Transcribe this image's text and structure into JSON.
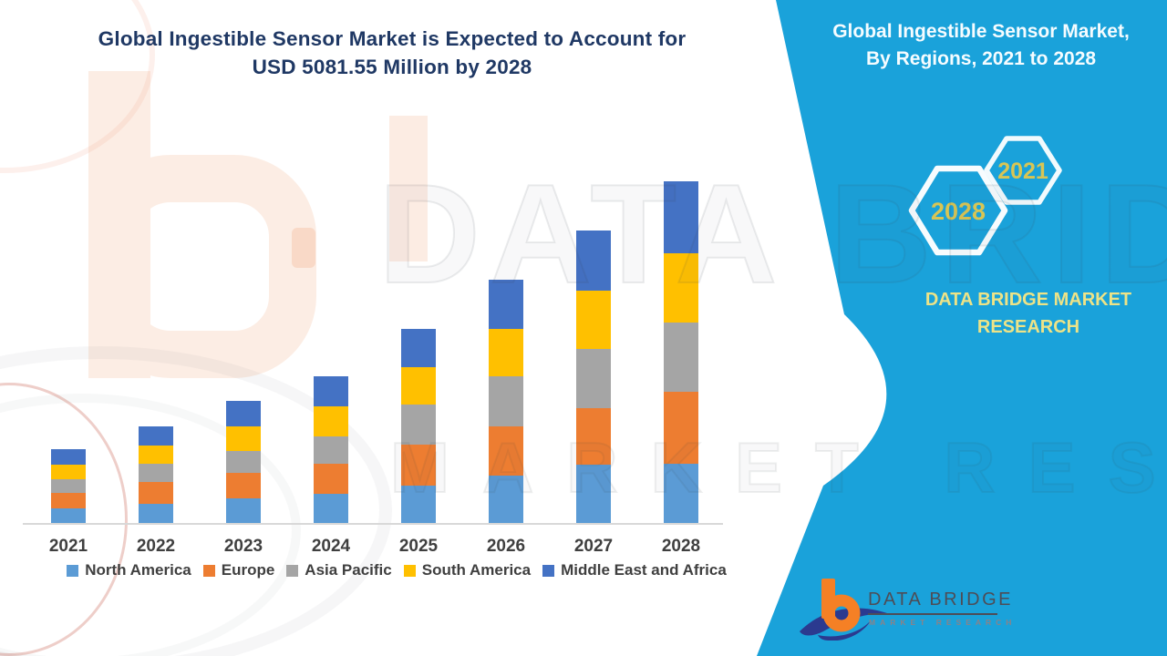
{
  "chart": {
    "title_line1": "Global Ingestible Sensor Market is Expected to Account for",
    "title_line2": "USD 5081.55 Million by 2028",
    "title_color": "#1F3864"
  },
  "chart_data": {
    "type": "bar",
    "stacked": true,
    "unit": "USD Million",
    "title": "Global Ingestible Sensor Market is Expected to Account for USD 5081.55 Million by 2028",
    "categories": [
      "2021",
      "2022",
      "2023",
      "2024",
      "2025",
      "2026",
      "2027",
      "2028"
    ],
    "series": [
      {
        "name": "North America",
        "color": "#5B9BD5",
        "values": [
          226,
          293,
          374,
          442,
          564,
          720,
          879,
          895
        ]
      },
      {
        "name": "Europe",
        "color": "#ED7D31",
        "values": [
          230,
          324,
          378,
          450,
          608,
          722,
          834,
          1065
        ]
      },
      {
        "name": "Asia Pacific",
        "color": "#A5A5A5",
        "values": [
          207,
          270,
          324,
          401,
          599,
          743,
          887,
          1030
        ]
      },
      {
        "name": "South America",
        "color": "#FFC000",
        "values": [
          212,
          270,
          365,
          454,
          558,
          707,
          861,
          1025
        ]
      },
      {
        "name": "Middle East and Africa",
        "color": "#4472C4",
        "values": [
          230,
          284,
          382,
          446,
          564,
          734,
          888,
          1066.55
        ]
      }
    ],
    "totals": [
      1105,
      1441,
      1823,
      2193,
      2893,
      3626,
      4349,
      5081.55
    ],
    "year_2028_total": "5081.55",
    "yaxis": "hidden",
    "grid": "off",
    "legend_position": "bottom"
  },
  "banner": {
    "heading_line1": "Global Ingestible Sensor Market,",
    "heading_line2": "By Regions, 2021 to 2028",
    "hexagon_back_year": "2021",
    "hexagon_front_year": "2028",
    "brand_line1": "DATA BRIDGE MARKET",
    "brand_line2": "RESEARCH",
    "bg_color": "#1AA2DA",
    "heading_color": "#F5FCFF",
    "brand_text_color": "#EDE387",
    "hex_year_color": "#D8C554"
  },
  "logo": {
    "name": "DATA BRIDGE",
    "subline": "MARKET RESEARCH",
    "orange": "#F58025",
    "navy": "#2B3A8F"
  },
  "watermark": {
    "big_text": "DATA BRIDGE",
    "sub_text": "MARKET RESEARCH"
  }
}
